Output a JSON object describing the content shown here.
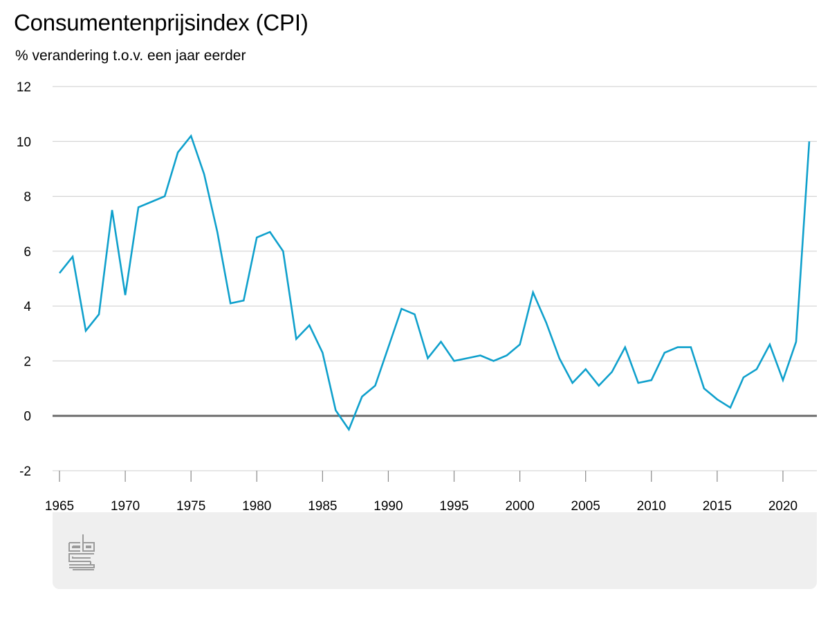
{
  "title": "Consumentenprijsindex (CPI)",
  "subtitle": "% verandering t.o.v. een jaar eerder",
  "colors": {
    "line": "#0fa0cc",
    "grid": "#cccccc",
    "zero_line": "#6b6b6b",
    "footer_bg": "#efefef",
    "logo": "#9a9a9a"
  },
  "logo_icon": "cbs-logo-icon",
  "chart_data": {
    "type": "line",
    "title": "Consumentenprijsindex (CPI)",
    "subtitle": "% verandering t.o.v. een jaar eerder",
    "xlabel": "",
    "ylabel": "",
    "ylim": [
      -2,
      12
    ],
    "xlim": [
      1965,
      2022
    ],
    "yticks": [
      -2,
      0,
      2,
      4,
      6,
      8,
      10,
      12
    ],
    "xticks": [
      1965,
      1970,
      1975,
      1980,
      1985,
      1990,
      1995,
      2000,
      2005,
      2010,
      2015,
      2020
    ],
    "grid": true,
    "legend": "none",
    "x": [
      1965,
      1966,
      1967,
      1968,
      1969,
      1970,
      1971,
      1972,
      1973,
      1974,
      1975,
      1976,
      1977,
      1978,
      1979,
      1980,
      1981,
      1982,
      1983,
      1984,
      1985,
      1986,
      1987,
      1988,
      1989,
      1990,
      1991,
      1992,
      1993,
      1994,
      1995,
      1996,
      1997,
      1998,
      1999,
      2000,
      2001,
      2002,
      2003,
      2004,
      2005,
      2006,
      2007,
      2008,
      2009,
      2010,
      2011,
      2012,
      2013,
      2014,
      2015,
      2016,
      2017,
      2018,
      2019,
      2020,
      2021,
      2022
    ],
    "series": [
      {
        "values": [
          5.2,
          5.8,
          3.1,
          3.7,
          7.5,
          4.4,
          7.6,
          7.8,
          8.0,
          9.6,
          10.2,
          8.8,
          6.7,
          4.1,
          4.2,
          6.5,
          6.7,
          6.0,
          2.8,
          3.3,
          2.3,
          0.2,
          -0.5,
          0.7,
          1.1,
          2.5,
          3.9,
          3.7,
          2.1,
          2.7,
          2.0,
          2.1,
          2.2,
          2.0,
          2.2,
          2.6,
          4.5,
          3.4,
          2.1,
          1.2,
          1.7,
          1.1,
          1.6,
          2.5,
          1.2,
          1.3,
          2.3,
          2.5,
          2.5,
          1.0,
          0.6,
          0.3,
          1.4,
          1.7,
          2.6,
          1.3,
          2.7,
          10.0
        ]
      }
    ]
  }
}
